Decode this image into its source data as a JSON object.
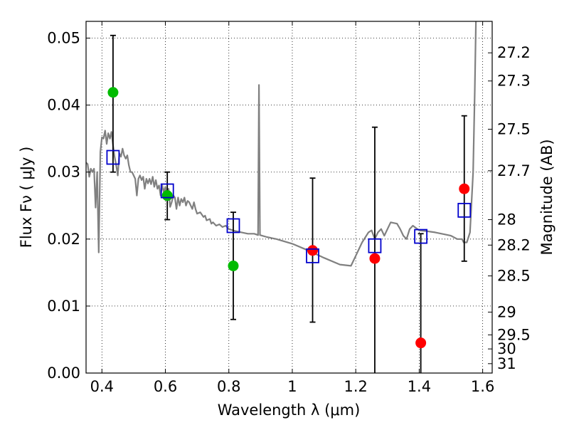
{
  "chart_data": {
    "type": "scatter",
    "title": "",
    "xlabel": "Wavelength  λ (μm)",
    "ylabel": "Flux  Fν  ( μJy )",
    "y2label": "Magnitude (AB)",
    "xlim": [
      0.35,
      1.63
    ],
    "ylim": [
      0.0,
      0.0525
    ],
    "grid": true,
    "grid_style": "dotted",
    "legend": "none",
    "x_ticks": [
      0.4,
      0.6,
      0.8,
      1.0,
      1.2,
      1.4,
      1.6
    ],
    "x_tick_labels": [
      "0.4",
      "0.6",
      "0.8",
      "1",
      "1.2",
      "1.4",
      "1.6"
    ],
    "y_ticks": [
      0.0,
      0.01,
      0.02,
      0.03,
      0.04,
      0.05
    ],
    "y_tick_labels": [
      "0.00",
      "0.01",
      "0.02",
      "0.03",
      "0.04",
      "0.05"
    ],
    "y2_ticks": [
      {
        "flux": 0.0478,
        "label": "27.2"
      },
      {
        "flux": 0.0436,
        "label": "27.3"
      },
      {
        "flux": 0.0364,
        "label": "27.5"
      },
      {
        "flux": 0.0302,
        "label": "27.7"
      },
      {
        "flux": 0.0229,
        "label": "28"
      },
      {
        "flux": 0.0191,
        "label": "28.2"
      },
      {
        "flux": 0.0145,
        "label": "28.5"
      },
      {
        "flux": 0.0091,
        "label": "29"
      },
      {
        "flux": 0.0057,
        "label": "29.5"
      },
      {
        "flux": 0.0036,
        "label": "30"
      },
      {
        "flux": 0.0014,
        "label": "31"
      }
    ],
    "colors": {
      "green": "#00bb00",
      "red": "#ff0000",
      "model_box": "#0000cc",
      "spectrum": "#808080",
      "errorbar": "#000000"
    },
    "series": [
      {
        "marker": "circle",
        "color": "#00bb00",
        "points": [
          {
            "x": 0.435,
            "y": 0.0419
          },
          {
            "x": 0.606,
            "y": 0.0265
          },
          {
            "x": 0.814,
            "y": 0.016
          }
        ]
      },
      {
        "marker": "circle",
        "color": "#ff0000",
        "points": [
          {
            "x": 1.064,
            "y": 0.0183
          },
          {
            "x": 1.26,
            "y": 0.0171
          },
          {
            "x": 1.405,
            "y": 0.0045
          },
          {
            "x": 1.542,
            "y": 0.0275
          }
        ]
      },
      {
        "marker": "open-square",
        "color": "#0000cc",
        "points": [
          {
            "x": 0.435,
            "y": 0.0322
          },
          {
            "x": 0.606,
            "y": 0.0272
          },
          {
            "x": 0.814,
            "y": 0.022
          },
          {
            "x": 1.064,
            "y": 0.0175
          },
          {
            "x": 1.26,
            "y": 0.019
          },
          {
            "x": 1.405,
            "y": 0.0204
          },
          {
            "x": 1.542,
            "y": 0.0243
          }
        ]
      }
    ],
    "error_bars": [
      {
        "x": 0.435,
        "low": 0.03,
        "high": 0.0504
      },
      {
        "x": 0.606,
        "low": 0.0229,
        "high": 0.03
      },
      {
        "x": 0.814,
        "low": 0.008,
        "high": 0.024
      },
      {
        "x": 1.064,
        "low": 0.0076,
        "high": 0.0291
      },
      {
        "x": 1.26,
        "low": 0.0,
        "high": 0.0367
      },
      {
        "x": 1.405,
        "low": 0.0,
        "high": 0.0208
      },
      {
        "x": 1.542,
        "low": 0.0167,
        "high": 0.0384
      }
    ],
    "spectrum": [
      [
        0.35,
        0.0314
      ],
      [
        0.355,
        0.0312
      ],
      [
        0.36,
        0.0293
      ],
      [
        0.365,
        0.0305
      ],
      [
        0.37,
        0.03
      ],
      [
        0.375,
        0.0305
      ],
      [
        0.38,
        0.0247
      ],
      [
        0.385,
        0.03
      ],
      [
        0.39,
        0.018
      ],
      [
        0.395,
        0.033
      ],
      [
        0.4,
        0.0352
      ],
      [
        0.405,
        0.035
      ],
      [
        0.41,
        0.0362
      ],
      [
        0.415,
        0.0342
      ],
      [
        0.42,
        0.0358
      ],
      [
        0.425,
        0.035
      ],
      [
        0.43,
        0.036
      ],
      [
        0.435,
        0.034
      ],
      [
        0.44,
        0.0323
      ],
      [
        0.445,
        0.031
      ],
      [
        0.45,
        0.0295
      ],
      [
        0.455,
        0.0328
      ],
      [
        0.46,
        0.0323
      ],
      [
        0.465,
        0.0335
      ],
      [
        0.47,
        0.0325
      ],
      [
        0.475,
        0.032
      ],
      [
        0.48,
        0.0325
      ],
      [
        0.485,
        0.031
      ],
      [
        0.49,
        0.03
      ],
      [
        0.495,
        0.03
      ],
      [
        0.5,
        0.0295
      ],
      [
        0.505,
        0.029
      ],
      [
        0.51,
        0.0265
      ],
      [
        0.515,
        0.029
      ],
      [
        0.52,
        0.0295
      ],
      [
        0.525,
        0.0288
      ],
      [
        0.53,
        0.0293
      ],
      [
        0.535,
        0.0275
      ],
      [
        0.54,
        0.029
      ],
      [
        0.545,
        0.0283
      ],
      [
        0.55,
        0.029
      ],
      [
        0.555,
        0.0282
      ],
      [
        0.56,
        0.0293
      ],
      [
        0.565,
        0.0278
      ],
      [
        0.57,
        0.0288
      ],
      [
        0.575,
        0.0275
      ],
      [
        0.58,
        0.028
      ],
      [
        0.585,
        0.0265
      ],
      [
        0.59,
        0.028
      ],
      [
        0.595,
        0.027
      ],
      [
        0.6,
        0.0278
      ],
      [
        0.605,
        0.026
      ],
      [
        0.61,
        0.0275
      ],
      [
        0.615,
        0.0248
      ],
      [
        0.62,
        0.0255
      ],
      [
        0.625,
        0.0265
      ],
      [
        0.63,
        0.0262
      ],
      [
        0.635,
        0.0245
      ],
      [
        0.64,
        0.0262
      ],
      [
        0.645,
        0.025
      ],
      [
        0.65,
        0.026
      ],
      [
        0.655,
        0.0255
      ],
      [
        0.66,
        0.0262
      ],
      [
        0.665,
        0.025
      ],
      [
        0.67,
        0.0257
      ],
      [
        0.675,
        0.0255
      ],
      [
        0.68,
        0.025
      ],
      [
        0.685,
        0.0245
      ],
      [
        0.69,
        0.0255
      ],
      [
        0.695,
        0.0245
      ],
      [
        0.7,
        0.0238
      ],
      [
        0.71,
        0.024
      ],
      [
        0.72,
        0.0233
      ],
      [
        0.725,
        0.0235
      ],
      [
        0.73,
        0.0228
      ],
      [
        0.74,
        0.023
      ],
      [
        0.745,
        0.0223
      ],
      [
        0.75,
        0.0225
      ],
      [
        0.76,
        0.022
      ],
      [
        0.77,
        0.0222
      ],
      [
        0.78,
        0.0218
      ],
      [
        0.79,
        0.022
      ],
      [
        0.8,
        0.0215
      ],
      [
        0.82,
        0.0212
      ],
      [
        0.84,
        0.021
      ],
      [
        0.86,
        0.0208
      ],
      [
        0.88,
        0.0208
      ],
      [
        0.892,
        0.0206
      ],
      [
        0.895,
        0.043
      ],
      [
        0.898,
        0.0206
      ],
      [
        0.92,
        0.0203
      ],
      [
        0.95,
        0.02
      ],
      [
        1.0,
        0.0193
      ],
      [
        1.05,
        0.0183
      ],
      [
        1.1,
        0.0172
      ],
      [
        1.15,
        0.0162
      ],
      [
        1.185,
        0.016
      ],
      [
        1.2,
        0.0175
      ],
      [
        1.22,
        0.0195
      ],
      [
        1.24,
        0.021
      ],
      [
        1.25,
        0.0213
      ],
      [
        1.26,
        0.02
      ],
      [
        1.27,
        0.021
      ],
      [
        1.28,
        0.0215
      ],
      [
        1.29,
        0.0205
      ],
      [
        1.3,
        0.0215
      ],
      [
        1.31,
        0.0225
      ],
      [
        1.33,
        0.0223
      ],
      [
        1.34,
        0.0215
      ],
      [
        1.35,
        0.0205
      ],
      [
        1.36,
        0.02
      ],
      [
        1.37,
        0.0215
      ],
      [
        1.38,
        0.022
      ],
      [
        1.4,
        0.0213
      ],
      [
        1.42,
        0.0212
      ],
      [
        1.45,
        0.021
      ],
      [
        1.48,
        0.0207
      ],
      [
        1.5,
        0.0205
      ],
      [
        1.52,
        0.02
      ],
      [
        1.535,
        0.02
      ],
      [
        1.54,
        0.0195
      ],
      [
        1.55,
        0.0195
      ],
      [
        1.56,
        0.021
      ],
      [
        1.57,
        0.03
      ],
      [
        1.575,
        0.042
      ],
      [
        1.58,
        0.056
      ]
    ]
  }
}
